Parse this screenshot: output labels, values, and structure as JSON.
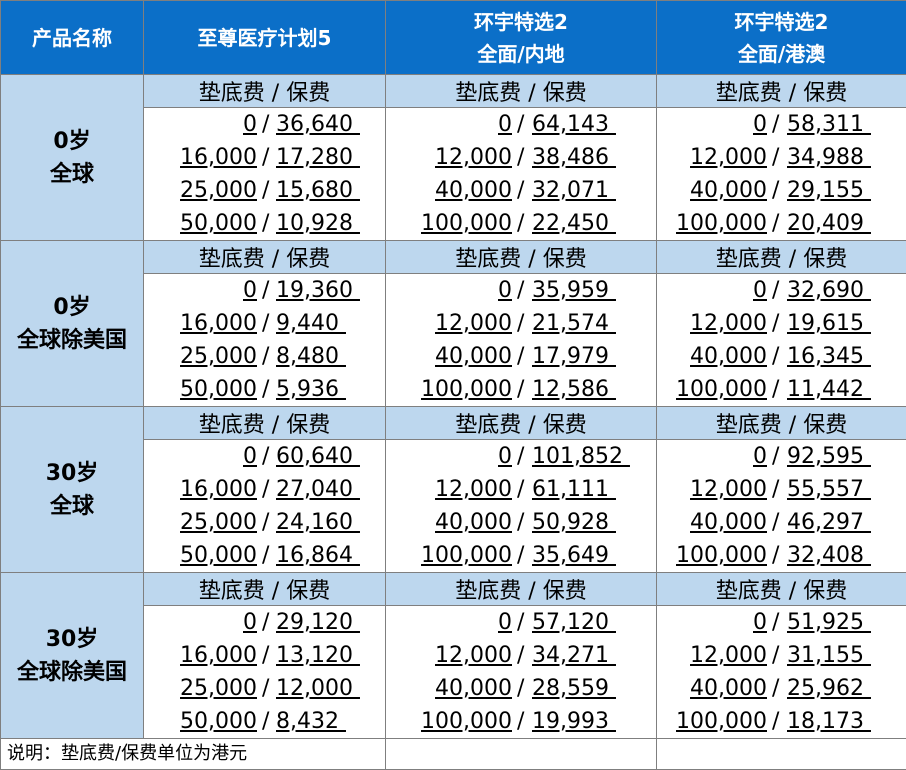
{
  "headers": {
    "product": "产品名称",
    "col1": "至尊医疗计划5",
    "col2_line1": "环宇特选2",
    "col2_line2": "全面/内地",
    "col3_line1": "环宇特选2",
    "col3_line2": "全面/港澳"
  },
  "sub_label": "垫底费 / 保费",
  "groups": [
    {
      "label_line1": "0岁",
      "label_line2": "全球",
      "col1": [
        [
          "0",
          "36,640"
        ],
        [
          "16,000",
          "17,280"
        ],
        [
          "25,000",
          "15,680"
        ],
        [
          "50,000",
          "10,928"
        ]
      ],
      "col2": [
        [
          "0",
          "64,143"
        ],
        [
          "12,000",
          "38,486"
        ],
        [
          "40,000",
          "32,071"
        ],
        [
          "100,000",
          "22,450"
        ]
      ],
      "col3": [
        [
          "0",
          "58,311"
        ],
        [
          "12,000",
          "34,988"
        ],
        [
          "40,000",
          "29,155"
        ],
        [
          "100,000",
          "20,409"
        ]
      ]
    },
    {
      "label_line1": "0岁",
      "label_line2": "全球除美国",
      "col1": [
        [
          "0",
          "19,360"
        ],
        [
          "16,000",
          "9,440"
        ],
        [
          "25,000",
          "8,480"
        ],
        [
          "50,000",
          "5,936"
        ]
      ],
      "col2": [
        [
          "0",
          "35,959"
        ],
        [
          "12,000",
          "21,574"
        ],
        [
          "40,000",
          "17,979"
        ],
        [
          "100,000",
          "12,586"
        ]
      ],
      "col3": [
        [
          "0",
          "32,690"
        ],
        [
          "12,000",
          "19,615"
        ],
        [
          "40,000",
          "16,345"
        ],
        [
          "100,000",
          "11,442"
        ]
      ]
    },
    {
      "label_line1": "30岁",
      "label_line2": "全球",
      "col1": [
        [
          "0",
          "60,640"
        ],
        [
          "16,000",
          "27,040"
        ],
        [
          "25,000",
          "24,160"
        ],
        [
          "50,000",
          "16,864"
        ]
      ],
      "col2": [
        [
          "0",
          "101,852"
        ],
        [
          "12,000",
          "61,111"
        ],
        [
          "40,000",
          "50,928"
        ],
        [
          "100,000",
          "35,649"
        ]
      ],
      "col3": [
        [
          "0",
          "92,595"
        ],
        [
          "12,000",
          "55,557"
        ],
        [
          "40,000",
          "46,297"
        ],
        [
          "100,000",
          "32,408"
        ]
      ]
    },
    {
      "label_line1": "30岁",
      "label_line2": "全球除美国",
      "col1": [
        [
          "0",
          "29,120"
        ],
        [
          "16,000",
          "13,120"
        ],
        [
          "25,000",
          "12,000"
        ],
        [
          "50,000",
          "8,432"
        ]
      ],
      "col2": [
        [
          "0",
          "57,120"
        ],
        [
          "12,000",
          "34,271"
        ],
        [
          "40,000",
          "28,559"
        ],
        [
          "100,000",
          "19,993"
        ]
      ],
      "col3": [
        [
          "0",
          "51,925"
        ],
        [
          "12,000",
          "31,155"
        ],
        [
          "40,000",
          "25,962"
        ],
        [
          "100,000",
          "18,173"
        ]
      ]
    }
  ],
  "footnote": "说明：垫底费/保费单位为港元",
  "colors": {
    "header_bg": "#0b6fc8",
    "group_bg": "#bdd7ee",
    "border": "#7f7f7f"
  }
}
